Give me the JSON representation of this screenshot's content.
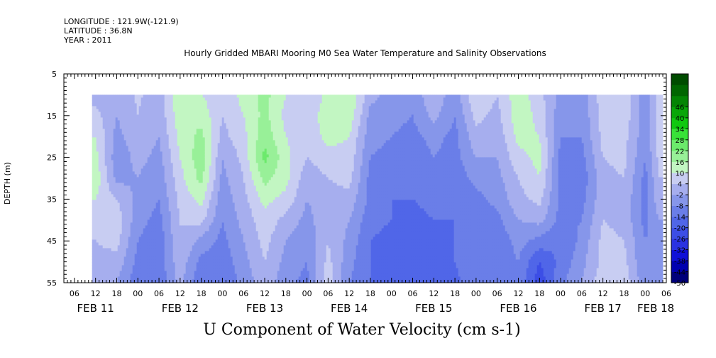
{
  "meta": {
    "longitude": "LONGITUDE : 121.9W(-121.9)",
    "latitude": "LATITUDE : 36.8N",
    "year": "YEAR : 2011"
  },
  "chart_data": {
    "type": "heatmap",
    "title": "Hourly Gridded MBARI Mooring M0 Sea Water Temperature and Salinity Observations",
    "xlabel": "U Component of Water Velocity (cm s-1)",
    "ylabel": "DEPTH (m)",
    "y_axis": {
      "range": [
        5,
        55
      ],
      "reversed": true,
      "ticks": [
        5,
        15,
        25,
        35,
        45,
        55
      ],
      "tick_labels": [
        "5",
        "15",
        "25",
        "35",
        "45",
        "55"
      ]
    },
    "x_axis": {
      "range_hours": [
        -21,
        150
      ],
      "hour_ticks": [
        -18,
        -12,
        -6,
        0,
        6,
        12,
        18,
        24,
        30,
        36,
        42,
        48,
        54,
        60,
        66,
        72,
        78,
        84,
        90,
        96,
        102,
        108,
        114,
        120,
        126,
        132,
        138,
        144,
        150
      ],
      "hour_tick_labels": [
        "06",
        "12",
        "18",
        "00",
        "06",
        "12",
        "18",
        "00",
        "06",
        "12",
        "18",
        "00",
        "06",
        "12",
        "18",
        "00",
        "06",
        "12",
        "18",
        "00",
        "06",
        "12",
        "18",
        "00",
        "06",
        "12",
        "18",
        "00",
        "06"
      ],
      "day_labels": [
        {
          "label": "FEB 11",
          "hour": -12
        },
        {
          "label": "FEB 12",
          "hour": 12
        },
        {
          "label": "FEB 13",
          "hour": 36
        },
        {
          "label": "FEB 14",
          "hour": 60
        },
        {
          "label": "FEB 15",
          "hour": 84
        },
        {
          "label": "FEB 16",
          "hour": 108
        },
        {
          "label": "FEB 17",
          "hour": 132
        },
        {
          "label": "FEB 18",
          "hour": 147
        }
      ]
    },
    "data_extent": {
      "x_hours": [
        -13,
        149
      ],
      "depth": [
        10,
        55
      ]
    },
    "colorbar": {
      "levels": [
        -50,
        -44,
        -38,
        -32,
        -26,
        -20,
        -14,
        -8,
        -2,
        4,
        10,
        16,
        22,
        28,
        34,
        40,
        46
      ],
      "tick_labels": [
        "-50",
        "-44",
        "-38",
        "-32",
        "-26",
        "-20",
        "-14",
        "-8",
        "-2",
        "4",
        "10",
        "16",
        "22",
        "28",
        "34",
        "40",
        "46"
      ],
      "colors_negative_to_positive": [
        "#00007a",
        "#0000b0",
        "#1010d8",
        "#2a32e2",
        "#3c4ee6",
        "#5066e8",
        "#6a7ee8",
        "#8696ea",
        "#a6aeee",
        "#c8cdf2"
      ],
      "colors_positive": [
        "#c2f6c2",
        "#98f098",
        "#6cea6c",
        "#38e238",
        "#10c810",
        "#08a608",
        "#048404",
        "#016601",
        "#004c00"
      ]
    },
    "values_cm_s": {
      "depths_m": [
        10,
        15,
        20,
        25,
        30,
        35,
        40,
        45,
        50,
        55
      ],
      "time_hours": [
        -12,
        -6,
        0,
        6,
        12,
        18,
        24,
        30,
        36,
        42,
        48,
        54,
        60,
        66,
        72,
        78,
        84,
        90,
        96,
        102,
        108,
        114,
        120,
        126,
        132,
        138,
        144,
        148
      ],
      "grid": [
        [
          2,
          0,
          5,
          1,
          14,
          10,
          6,
          12,
          18,
          10,
          4,
          12,
          16,
          0,
          -4,
          -6,
          3,
          -6,
          10,
          4,
          14,
          6,
          -4,
          -6,
          8,
          8,
          -6,
          8
        ],
        [
          6,
          -2,
          4,
          0,
          14,
          14,
          4,
          10,
          18,
          8,
          6,
          14,
          14,
          -4,
          -6,
          -8,
          0,
          -8,
          6,
          2,
          14,
          8,
          -6,
          -6,
          6,
          8,
          -6,
          8
        ],
        [
          10,
          -4,
          2,
          -2,
          12,
          18,
          2,
          8,
          20,
          10,
          6,
          12,
          10,
          -6,
          -8,
          -10,
          -6,
          -10,
          2,
          0,
          12,
          10,
          -8,
          -8,
          6,
          6,
          -6,
          6
        ],
        [
          12,
          -6,
          0,
          -4,
          10,
          20,
          -2,
          6,
          24,
          12,
          4,
          8,
          8,
          -8,
          -10,
          -12,
          -8,
          -10,
          -2,
          -2,
          8,
          12,
          -10,
          -10,
          4,
          6,
          -8,
          6
        ],
        [
          14,
          -4,
          -2,
          -6,
          8,
          18,
          -4,
          4,
          18,
          12,
          0,
          4,
          6,
          -10,
          -12,
          -12,
          -10,
          -12,
          -6,
          -4,
          4,
          10,
          -10,
          -12,
          2,
          4,
          -10,
          4
        ],
        [
          10,
          4,
          -4,
          -8,
          6,
          12,
          -6,
          2,
          12,
          8,
          -2,
          2,
          2,
          -10,
          -14,
          -14,
          -12,
          -12,
          -10,
          -6,
          2,
          6,
          -10,
          -10,
          2,
          2,
          -10,
          2
        ],
        [
          6,
          8,
          -6,
          -10,
          4,
          6,
          -8,
          0,
          8,
          2,
          -4,
          2,
          -2,
          -12,
          -14,
          -16,
          -14,
          -14,
          -12,
          -10,
          -2,
          0,
          -10,
          -8,
          4,
          2,
          -10,
          -2
        ],
        [
          4,
          6,
          -8,
          -12,
          4,
          -4,
          -10,
          -2,
          6,
          -2,
          -6,
          4,
          -4,
          -14,
          -16,
          -16,
          -16,
          -14,
          -12,
          -12,
          -6,
          -10,
          -14,
          -6,
          6,
          4,
          -8,
          -4
        ],
        [
          2,
          2,
          -10,
          -12,
          2,
          -10,
          -12,
          -4,
          4,
          -4,
          -8,
          6,
          -6,
          -14,
          -16,
          -18,
          -16,
          -14,
          -10,
          -12,
          -8,
          -20,
          -12,
          -4,
          6,
          6,
          -8,
          -4
        ],
        [
          0,
          -2,
          -12,
          -12,
          0,
          -14,
          -14,
          -6,
          2,
          -6,
          -10,
          8,
          -8,
          -14,
          -16,
          -18,
          -18,
          -16,
          -8,
          -12,
          -10,
          -24,
          -10,
          -2,
          8,
          8,
          -6,
          -6
        ]
      ]
    }
  }
}
